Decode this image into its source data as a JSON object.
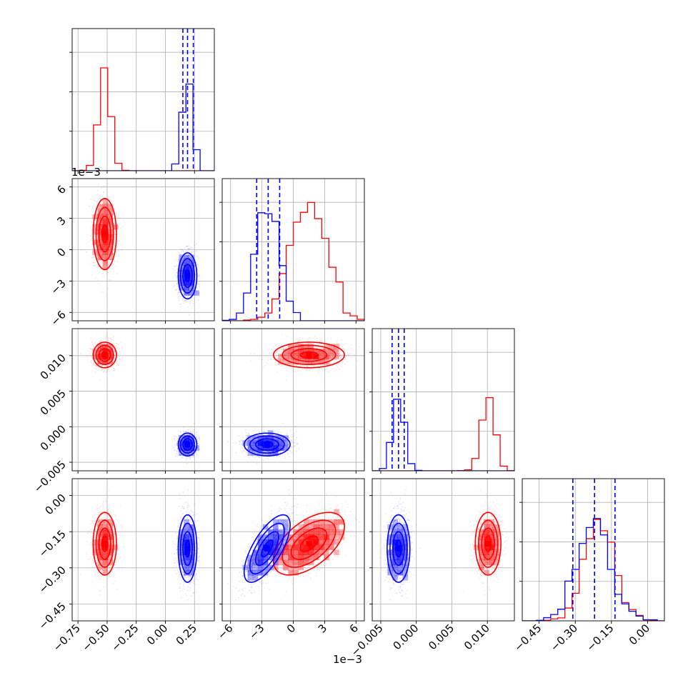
{
  "chart_data": {
    "type": "scatter",
    "subtype": "corner-plot",
    "parameters": 4,
    "grid": true,
    "colors": {
      "red": "#ff0000",
      "blue": "#0000ff"
    },
    "series": [
      {
        "color": "#ff0000",
        "means": [
          -0.52,
          0.0015,
          0.0101,
          -0.2
        ],
        "sigmas": [
          0.05,
          0.0017,
          0.0009,
          0.065
        ],
        "correlation_p1_p3": 0.55,
        "quantile_lines": false
      },
      {
        "color": "#0000ff",
        "means": [
          0.19,
          -0.0025,
          -0.0025,
          -0.22
        ],
        "sigmas": [
          0.04,
          0.0011,
          0.0008,
          0.07
        ],
        "correlation_p1_p3": 0.7,
        "quantile_lines": true
      }
    ],
    "quantiles": [
      [
        0.15,
        0.19,
        0.24
      ],
      [
        -0.0035,
        -0.0024,
        -0.0013
      ],
      [
        -0.0034,
        -0.0025,
        -0.0017
      ],
      [
        -0.31,
        -0.22,
        -0.135
      ]
    ],
    "axes": [
      {
        "range": [
          -0.8,
          0.42
        ],
        "ticks": [
          -0.75,
          -0.5,
          -0.25,
          0.0,
          0.25
        ],
        "tick_labels": [
          "−0.75",
          "−0.50",
          "−0.25",
          "0.00",
          "0.25"
        ],
        "offset_label": ""
      },
      {
        "range": [
          -0.0068,
          0.0068
        ],
        "ticks": [
          -0.006,
          -0.003,
          0,
          0.003,
          0.006
        ],
        "tick_labels": [
          "−6",
          "−3",
          "0",
          "3",
          "6"
        ],
        "offset_label": "1e−3"
      },
      {
        "range": [
          -0.0062,
          0.0138
        ],
        "ticks": [
          -0.005,
          0.0,
          0.005,
          0.01
        ],
        "tick_labels": [
          "−0.005",
          "0.000",
          "0.005",
          "0.010"
        ],
        "offset_label": ""
      },
      {
        "range": [
          -0.52,
          0.07
        ],
        "ticks": [
          -0.45,
          -0.3,
          -0.15,
          0.0
        ],
        "tick_labels": [
          "−0.45",
          "−0.30",
          "−0.15",
          "0.00"
        ],
        "offset_label": ""
      }
    ],
    "diag_y_max": [
      1.35,
      1.15,
      1.8,
      1.45
    ]
  }
}
